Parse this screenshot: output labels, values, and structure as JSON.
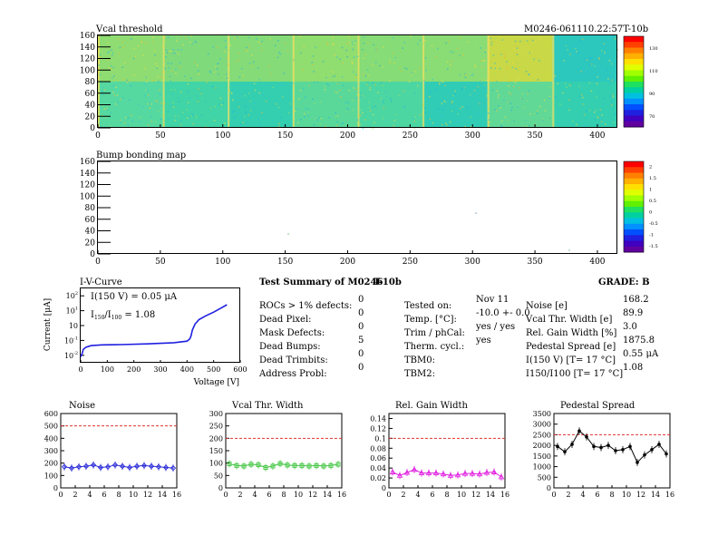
{
  "header": {
    "left_title": "Vcal threshold",
    "right_title": "M0246-061110.22:57T-10b"
  },
  "vcal_map": {
    "x_ticks": [
      "0",
      "50",
      "100",
      "150",
      "200",
      "250",
      "300",
      "350",
      "400"
    ],
    "y_ticks": [
      "0",
      "20",
      "40",
      "60",
      "80",
      "100",
      "120",
      "140",
      "160"
    ],
    "palette_labels": [
      "130",
      "110",
      "90",
      "70"
    ],
    "rows": 2,
    "cols": 8,
    "roc_shades": [
      [
        "#56d9a0",
        "#40d4a6",
        "#34cfb0",
        "#5ad89a",
        "#4cd6a2",
        "#30ccb6",
        "#62d896",
        "#34cfb0"
      ],
      [
        "#8edc72",
        "#7fda7c",
        "#84db78",
        "#90dd70",
        "#86dc76",
        "#8adc74",
        "#c8d846",
        "#2cc8be"
      ]
    ]
  },
  "bump_map": {
    "title": "Bump bonding map",
    "x_ticks": [
      "0",
      "50",
      "100",
      "150",
      "200",
      "250",
      "300",
      "350",
      "400"
    ],
    "y_ticks": [
      "0",
      "20",
      "40",
      "60",
      "80",
      "100",
      "120",
      "140",
      "160"
    ],
    "palette_labels": [
      "2",
      "1.5",
      "1",
      "0.5",
      "0",
      "-0.5",
      "-1",
      "-1.5"
    ]
  },
  "iv_curve": {
    "title": "I-V-Curve",
    "ylabel": "Current [μA]",
    "xlabel": "Voltage [V]",
    "annotation_1": "I(150 V) = 0.05 μA",
    "annotation_2_prefix": "I",
    "annotation_2_sub1": "150",
    "annotation_2_mid": "/I",
    "annotation_2_sub2": "100",
    "annotation_2_value": " = 1.08",
    "x_ticks": [
      "0",
      "100",
      "200",
      "300",
      "400",
      "500",
      "600"
    ],
    "y_tick_base": "10",
    "y_tick_exps": [
      "-2",
      "-1",
      "",
      "1",
      "2"
    ]
  },
  "summary": {
    "title": "Test Summary of M0246",
    "temp_tag": "T-10b",
    "grade": "GRADE:  B",
    "defects": [
      {
        "label": "ROCs > 1% defects:",
        "value": "0"
      },
      {
        "label": "Dead Pixel:",
        "value": "0"
      },
      {
        "label": "Mask Defects:",
        "value": "0"
      },
      {
        "label": "Dead Bumps:",
        "value": "5"
      },
      {
        "label": "Dead Trimbits:",
        "value": "0"
      },
      {
        "label": "Address Probl:",
        "value": "0"
      }
    ],
    "conditions": [
      {
        "label": "Tested on:",
        "value": "Nov 11"
      },
      {
        "label": "Temp. [°C]:",
        "value": "-10.0 +- 0.0"
      },
      {
        "label": "Trim / phCal:",
        "value": "yes / yes"
      },
      {
        "label": "Therm. cycl.:",
        "value": "yes"
      },
      {
        "label": "TBM0:",
        "value": ""
      },
      {
        "label": "TBM2:",
        "value": ""
      }
    ],
    "results": [
      {
        "label": "Noise [e]",
        "value": "168.2"
      },
      {
        "label": "Vcal Thr. Width [e]",
        "value": "89.9"
      },
      {
        "label": "Rel. Gain Width [%]",
        "value": "3.0"
      },
      {
        "label": "Pedestal Spread [e]",
        "value": "1875.8"
      },
      {
        "label": "I(150 V) [T= 17 °C]",
        "value": "0.55 μA"
      },
      {
        "label": "I150/I100 [T= 17 °C]",
        "value": "1.08"
      }
    ]
  },
  "chart_data": [
    {
      "type": "line",
      "title": "Noise",
      "x": [
        0.5,
        1.5,
        2.5,
        3.5,
        4.5,
        5.5,
        6.5,
        7.5,
        8.5,
        9.5,
        10.5,
        11.5,
        12.5,
        13.5,
        14.5,
        15.5
      ],
      "values": [
        170,
        160,
        170,
        175,
        185,
        165,
        170,
        185,
        175,
        165,
        175,
        180,
        175,
        170,
        165,
        160
      ],
      "ylim": [
        0,
        600
      ],
      "xlim": [
        0,
        16
      ],
      "threshold": 500,
      "y_ticks": [
        0,
        100,
        200,
        300,
        400,
        500,
        600
      ],
      "x_ticks": [
        0,
        2,
        4,
        6,
        8,
        10,
        12,
        14,
        16
      ],
      "color": "#2c2cd8",
      "marker": "diamond"
    },
    {
      "type": "line",
      "title": "Vcal Thr. Width",
      "x": [
        0.5,
        1.5,
        2.5,
        3.5,
        4.5,
        5.5,
        6.5,
        7.5,
        8.5,
        9.5,
        10.5,
        11.5,
        12.5,
        13.5,
        14.5,
        15.5
      ],
      "values": [
        97,
        90,
        88,
        95,
        93,
        82,
        88,
        98,
        92,
        90,
        90,
        88,
        90,
        88,
        90,
        95
      ],
      "ylim": [
        0,
        300
      ],
      "xlim": [
        0,
        16
      ],
      "threshold": 200,
      "y_ticks": [
        0,
        50,
        100,
        150,
        200,
        250,
        300
      ],
      "x_ticks": [
        0,
        2,
        4,
        6,
        8,
        10,
        12,
        14,
        16
      ],
      "color": "#3ec43e",
      "marker": "square"
    },
    {
      "type": "line",
      "title": "Rel. Gain Width",
      "x": [
        0.5,
        1.5,
        2.5,
        3.5,
        4.5,
        5.5,
        6.5,
        7.5,
        8.5,
        9.5,
        10.5,
        11.5,
        12.5,
        13.5,
        14.5,
        15.5
      ],
      "values": [
        0.032,
        0.025,
        0.031,
        0.037,
        0.03,
        0.03,
        0.03,
        0.028,
        0.025,
        0.026,
        0.029,
        0.029,
        0.028,
        0.031,
        0.032,
        0.022
      ],
      "ylim": [
        0,
        0.15
      ],
      "xlim": [
        0,
        16
      ],
      "threshold": 0.1,
      "y_ticks": [
        0,
        0.02,
        0.04,
        0.06,
        0.08,
        0.1,
        0.12,
        0.14
      ],
      "x_ticks": [
        0,
        2,
        4,
        6,
        8,
        10,
        12,
        14,
        16
      ],
      "color": "#e020e0",
      "marker": "triangle"
    },
    {
      "type": "line",
      "title": "Pedestal Spread",
      "x": [
        0.5,
        1.5,
        2.5,
        3.5,
        4.5,
        5.5,
        6.5,
        7.5,
        8.5,
        9.5,
        10.5,
        11.5,
        12.5,
        13.5,
        14.5,
        15.5
      ],
      "values": [
        1950,
        1700,
        2050,
        2680,
        2400,
        1950,
        1900,
        2000,
        1750,
        1800,
        1950,
        1200,
        1550,
        1800,
        2050,
        1600
      ],
      "ylim": [
        0,
        3500
      ],
      "xlim": [
        0,
        16
      ],
      "threshold": 2500,
      "y_ticks": [
        0,
        500,
        1000,
        1500,
        2000,
        2500,
        3000,
        3500
      ],
      "x_ticks": [
        0,
        2,
        4,
        6,
        8,
        10,
        12,
        14,
        16
      ],
      "color": "#000000",
      "marker": "dot"
    }
  ]
}
